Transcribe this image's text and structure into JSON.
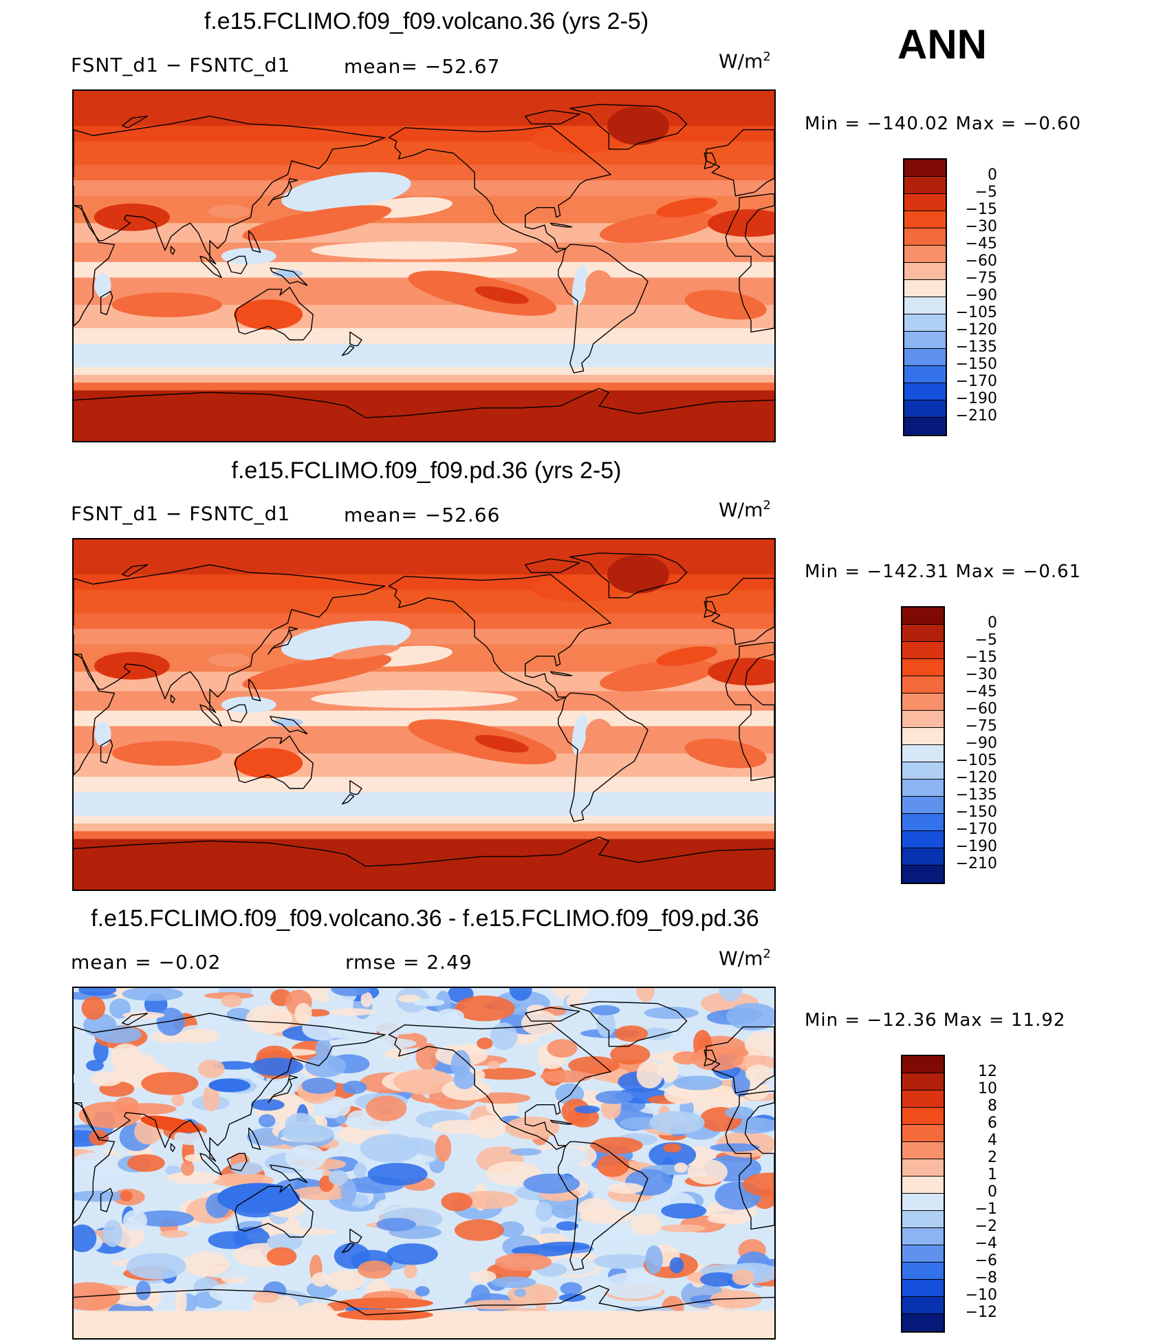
{
  "season": "ANN",
  "units_base": "W/m",
  "units_exp": "2",
  "panels": [
    {
      "title": "f.e15.FCLIMO.f09_f09.volcano.36 (yrs 2-5)",
      "left_text": "FSNT_d1  −  FSNTC_d1",
      "mid_text": "mean=  −52.67",
      "minmax": "Min  =  −140.02  Max  =    −0.60",
      "kind": "abs"
    },
    {
      "title": "f.e15.FCLIMO.f09_f09.pd.36 (yrs 2-5)",
      "left_text": "FSNT_d1  −  FSNTC_d1",
      "mid_text": "mean=  −52.66",
      "minmax": "Min  =  −142.31  Max  =    −0.61",
      "kind": "abs"
    },
    {
      "title": "f.e15.FCLIMO.f09_f09.volcano.36 - f.e15.FCLIMO.f09_f09.pd.36",
      "left_text": "mean  =    −0.02",
      "mid_text": "rmse  =     2.49",
      "minmax": "Min  =  −12.36  Max  =    11.92",
      "kind": "diff"
    }
  ],
  "colorbars": {
    "abs": {
      "labels": [
        "0",
        "−5",
        "−15",
        "−30",
        "−45",
        "−60",
        "−75",
        "−90",
        "−105",
        "−120",
        "−135",
        "−150",
        "−170",
        "−190",
        "−210"
      ],
      "colors": [
        "#7f0a04",
        "#b3210a",
        "#db3410",
        "#f04d1a",
        "#f46a3a",
        "#f8906a",
        "#fbbba0",
        "#fde6d6",
        "#d6e8f8",
        "#b0cff5",
        "#8ab4f2",
        "#5e92ee",
        "#3372ea",
        "#1550dd",
        "#0833b0",
        "#04197a"
      ]
    },
    "diff": {
      "labels": [
        "12",
        "10",
        "8",
        "6",
        "4",
        "2",
        "1",
        "0",
        "−1",
        "−2",
        "−4",
        "−6",
        "−8",
        "−10",
        "−12"
      ],
      "colors": [
        "#7f0a04",
        "#b3210a",
        "#db3410",
        "#f04d1a",
        "#f46a3a",
        "#f8906a",
        "#fbbba0",
        "#fde6d6",
        "#d6e8f8",
        "#b0cff5",
        "#8ab4f2",
        "#5e92ee",
        "#3372ea",
        "#1550dd",
        "#0833b0",
        "#04197a"
      ]
    }
  }
}
